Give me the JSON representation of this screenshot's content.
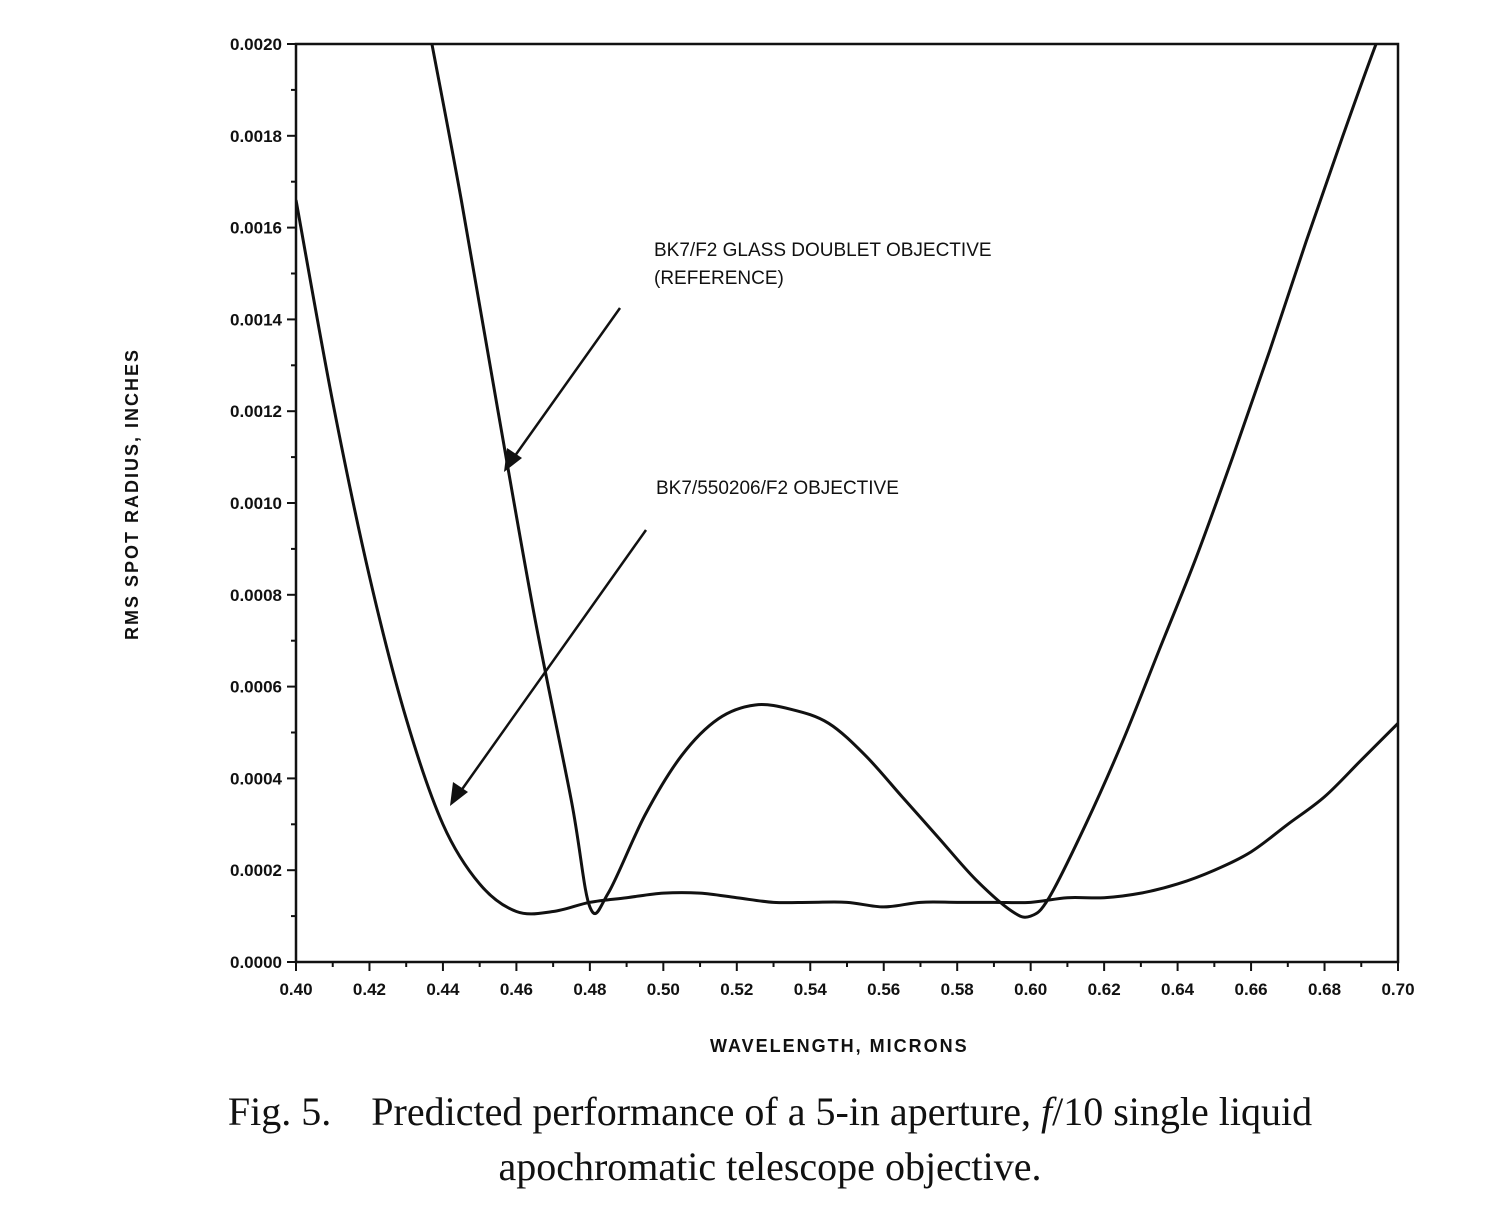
{
  "chart_data": {
    "type": "line",
    "xlabel": "WAVELENGTH, MICRONS",
    "ylabel": "RMS SPOT RADIUS, INCHES",
    "xlim": [
      0.4,
      0.7
    ],
    "ylim": [
      0.0,
      0.002
    ],
    "x_ticks": [
      "0.40",
      "0.42",
      "0.44",
      "0.46",
      "0.48",
      "0.50",
      "0.52",
      "0.54",
      "0.56",
      "0.58",
      "0.60",
      "0.62",
      "0.64",
      "0.66",
      "0.68",
      "0.70"
    ],
    "y_ticks": [
      "0.0000",
      "0.0002",
      "0.0004",
      "0.0006",
      "0.0008",
      "0.0010",
      "0.0012",
      "0.0014",
      "0.0016",
      "0.0018",
      "0.0020"
    ],
    "grid": false,
    "series": [
      {
        "name": "BK7/F2 GLASS DOUBLET OBJECTIVE (REFERENCE)",
        "x": [
          0.437,
          0.445,
          0.455,
          0.465,
          0.475,
          0.48,
          0.485,
          0.495,
          0.505,
          0.515,
          0.525,
          0.535,
          0.545,
          0.555,
          0.565,
          0.575,
          0.585,
          0.595,
          0.6,
          0.605,
          0.615,
          0.625,
          0.635,
          0.645,
          0.655,
          0.665,
          0.675,
          0.685,
          0.695,
          0.7
        ],
        "y": [
          0.002,
          0.00166,
          0.0012,
          0.00075,
          0.00035,
          0.00012,
          0.00015,
          0.00032,
          0.00045,
          0.00053,
          0.00056,
          0.00055,
          0.00052,
          0.00045,
          0.00036,
          0.00027,
          0.00018,
          0.00011,
          0.0001,
          0.00014,
          0.0003,
          0.00048,
          0.00068,
          0.00088,
          0.0011,
          0.00133,
          0.00157,
          0.0018,
          0.00202,
          0.0021
        ]
      },
      {
        "name": "BK7/550206/F2 OBJECTIVE",
        "x": [
          0.4,
          0.41,
          0.42,
          0.43,
          0.44,
          0.45,
          0.46,
          0.47,
          0.48,
          0.49,
          0.5,
          0.51,
          0.52,
          0.53,
          0.54,
          0.55,
          0.56,
          0.57,
          0.58,
          0.59,
          0.6,
          0.61,
          0.62,
          0.63,
          0.64,
          0.65,
          0.66,
          0.67,
          0.68,
          0.69,
          0.7
        ],
        "y": [
          0.00166,
          0.00122,
          0.00084,
          0.00053,
          0.0003,
          0.00017,
          0.00011,
          0.00011,
          0.00013,
          0.00014,
          0.00015,
          0.00015,
          0.00014,
          0.00013,
          0.00013,
          0.00013,
          0.00012,
          0.00013,
          0.00013,
          0.00013,
          0.00013,
          0.00014,
          0.00014,
          0.00015,
          0.00017,
          0.0002,
          0.00024,
          0.0003,
          0.00036,
          0.00044,
          0.00052
        ]
      }
    ],
    "annotations": [
      {
        "lines": [
          "BK7/F2 GLASS DOUBLET OBJECTIVE",
          "(REFERENCE)"
        ]
      },
      {
        "lines": [
          "BK7/550206/F2  OBJECTIVE"
        ]
      }
    ]
  },
  "caption": {
    "label": "Fig. 5.",
    "line1": "Predicted performance of a 5-in aperture, ",
    "f_symbol": "f",
    "line1_end": "/10 single liquid",
    "line2": "apochromatic telescope objective."
  }
}
